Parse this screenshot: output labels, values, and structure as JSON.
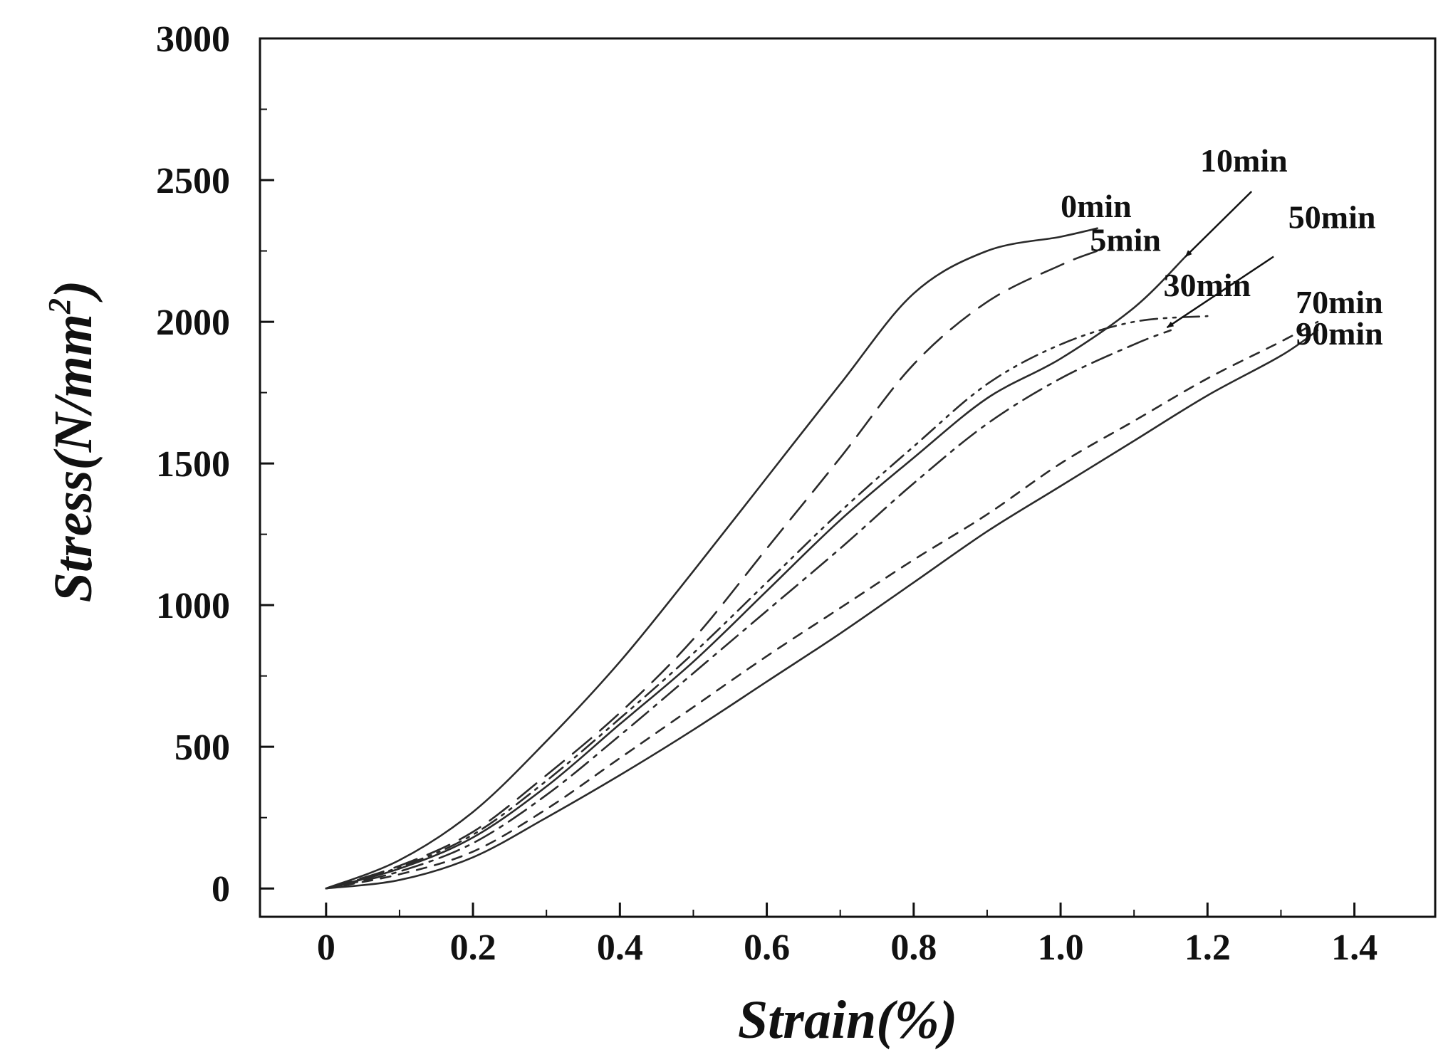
{
  "chart_data": {
    "type": "line",
    "title": "",
    "xlabel": "Strain(%)",
    "ylabel_main": "Stress(N/mm",
    "ylabel_sup": "2",
    "ylabel_close": ")",
    "xlim": [
      -0.09,
      1.51
    ],
    "ylim": [
      -100,
      3000
    ],
    "x_ticks": [
      0,
      0.2,
      0.4,
      0.6,
      0.8,
      1.0,
      1.2,
      1.4
    ],
    "x_tick_labels": [
      "0",
      "0.2",
      "0.4",
      "0.6",
      "0.8",
      "1.0",
      "1.2",
      "1.4"
    ],
    "y_ticks": [
      0,
      500,
      1000,
      1500,
      2000,
      2500,
      3000
    ],
    "y_tick_labels": [
      "0",
      "500",
      "1000",
      "1500",
      "2000",
      "2500",
      "3000"
    ],
    "grid": false,
    "series": [
      {
        "name": "0min",
        "style": "solid",
        "x": [
          0,
          0.1,
          0.2,
          0.3,
          0.4,
          0.5,
          0.6,
          0.7,
          0.8,
          0.9,
          1.0,
          1.05
        ],
        "y": [
          0,
          100,
          270,
          520,
          800,
          1120,
          1450,
          1780,
          2100,
          2250,
          2300,
          2330
        ]
      },
      {
        "name": "5min",
        "style": "long-dash",
        "x": [
          0,
          0.1,
          0.2,
          0.3,
          0.4,
          0.5,
          0.6,
          0.7,
          0.8,
          0.9,
          1.0,
          1.05
        ],
        "y": [
          0,
          80,
          200,
          400,
          620,
          880,
          1200,
          1520,
          1850,
          2070,
          2200,
          2250
        ]
      },
      {
        "name": "10min",
        "style": "solid",
        "x": [
          0,
          0.1,
          0.2,
          0.3,
          0.4,
          0.5,
          0.6,
          0.7,
          0.8,
          0.9,
          1.0,
          1.1,
          1.17
        ],
        "y": [
          0,
          70,
          180,
          360,
          580,
          800,
          1050,
          1300,
          1520,
          1730,
          1870,
          2050,
          2230
        ]
      },
      {
        "name": "30min",
        "style": "dash-dot-dot",
        "x": [
          0,
          0.1,
          0.2,
          0.3,
          0.4,
          0.5,
          0.6,
          0.7,
          0.8,
          0.9,
          1.0,
          1.1,
          1.2
        ],
        "y": [
          0,
          75,
          190,
          380,
          600,
          830,
          1080,
          1330,
          1560,
          1780,
          1920,
          2000,
          2020
        ]
      },
      {
        "name": "50min",
        "style": "dash-dot",
        "x": [
          0,
          0.1,
          0.2,
          0.3,
          0.4,
          0.5,
          0.6,
          0.7,
          0.8,
          0.9,
          1.0,
          1.1,
          1.15
        ],
        "y": [
          0,
          60,
          160,
          330,
          540,
          760,
          980,
          1200,
          1430,
          1640,
          1800,
          1920,
          1970
        ]
      },
      {
        "name": "70min",
        "style": "short-dash",
        "x": [
          0,
          0.1,
          0.2,
          0.3,
          0.4,
          0.5,
          0.6,
          0.7,
          0.8,
          0.9,
          1.0,
          1.1,
          1.2,
          1.3,
          1.35
        ],
        "y": [
          0,
          50,
          130,
          280,
          460,
          640,
          820,
          990,
          1160,
          1320,
          1500,
          1650,
          1800,
          1930,
          2000
        ]
      },
      {
        "name": "90min",
        "style": "solid",
        "x": [
          0,
          0.1,
          0.2,
          0.3,
          0.4,
          0.5,
          0.6,
          0.7,
          0.8,
          0.9,
          1.0,
          1.1,
          1.2,
          1.3,
          1.35
        ],
        "y": [
          0,
          30,
          110,
          250,
          400,
          560,
          730,
          900,
          1080,
          1260,
          1420,
          1580,
          1740,
          1880,
          1970
        ]
      }
    ],
    "annotations": [
      {
        "text": "0min",
        "x": 1.0,
        "y": 2370,
        "arrow": false
      },
      {
        "text": "5min",
        "x": 1.04,
        "y": 2250,
        "arrow": false
      },
      {
        "text": "10min",
        "x": 1.19,
        "y": 2530,
        "arrow": true,
        "arrow_tip": [
          1.17,
          2230
        ],
        "arrow_tail": [
          1.26,
          2460
        ]
      },
      {
        "text": "30min",
        "x": 1.14,
        "y": 2090,
        "arrow": false
      },
      {
        "text": "50min",
        "x": 1.31,
        "y": 2330,
        "arrow": true,
        "arrow_tip": [
          1.145,
          1980
        ],
        "arrow_tail": [
          1.29,
          2230
        ]
      },
      {
        "text": "70min",
        "x": 1.32,
        "y": 2030,
        "arrow": false
      },
      {
        "text": "90min",
        "x": 1.32,
        "y": 1920,
        "arrow": false
      }
    ]
  }
}
